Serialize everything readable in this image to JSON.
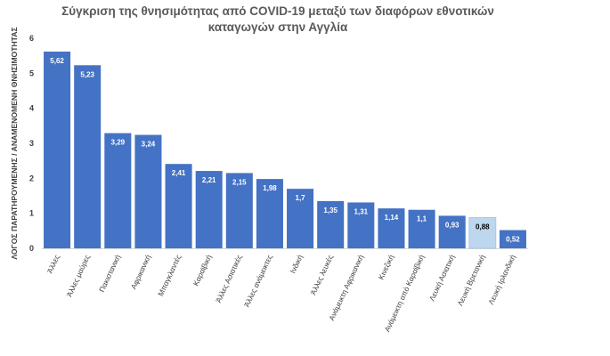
{
  "chart_data": {
    "type": "bar",
    "title_lines": [
      "Σύγκριση της θνησιμότητας από COVID-19 μεταξύ των διαφόρων εθνοτικών",
      "καταγωγών στην Αγγλία"
    ],
    "xlabel": "",
    "ylabel": "ΛΟΓΟΣ ΠΑΡΑΤΗΡΟΥΜΕΝΗΣ / ΑΝΑΜΕΝΟΜΕΝΗ ΘΝΗΣΙΜΟΤΗΤΑΣ",
    "ylim": [
      0,
      6
    ],
    "yticks": [
      0,
      1,
      2,
      3,
      4,
      5,
      6
    ],
    "grid": false,
    "legend": "none",
    "categories": [
      "Άλλες",
      "Άλλες μαύρες",
      "Πακιστανική",
      "Αφρικανική",
      "Μπαγκλαντές",
      "Καραϊβική",
      "Άλλες Ασιατικές",
      "Άλλες ανάμεικτες",
      "Ινδική",
      "Άλλες λευκές",
      "Ανάμεικτη Αφρικανική",
      "Κινεζική",
      "Ανάμεικτη από Καραϊβική",
      "Λευκή Ασιατική",
      "Λευκή Βρετανική",
      "Λευκή Ιρλανδική"
    ],
    "values": [
      5.62,
      5.23,
      3.29,
      3.24,
      2.41,
      2.21,
      2.15,
      1.98,
      1.7,
      1.35,
      1.31,
      1.14,
      1.1,
      0.93,
      0.88,
      0.52
    ],
    "value_labels": [
      "5,62",
      "5,23",
      "3,29",
      "3,24",
      "2,41",
      "2,21",
      "2,15",
      "1,98",
      "1,7",
      "1,35",
      "1,31",
      "1,14",
      "1,1",
      "0,93",
      "0,88",
      "0,52"
    ],
    "colors": {
      "bar": "#4472c4",
      "highlight_bar": "#bdd7ee",
      "highlight_index": 14,
      "label_on_bar": "#ffffff",
      "label_on_highlight": "#000000"
    }
  }
}
